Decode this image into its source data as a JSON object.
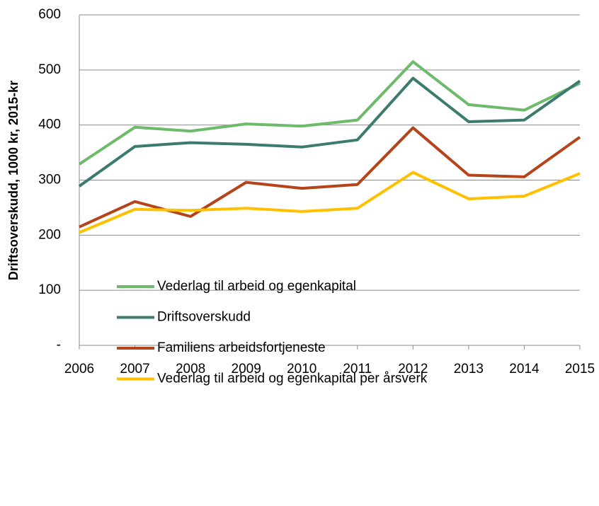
{
  "chart_data": {
    "type": "line",
    "y_label": "Driftsoverskudd, 1000 kr, 2015-kr",
    "x": [
      2006,
      2007,
      2008,
      2009,
      2010,
      2011,
      2012,
      2013,
      2014,
      2015
    ],
    "xlim": [
      2006,
      2015
    ],
    "xticks": [
      2006,
      2007,
      2008,
      2009,
      2010,
      2011,
      2012,
      2013,
      2014,
      2015
    ],
    "ylim": [
      0,
      600
    ],
    "yticks": [
      {
        "value": 0,
        "label": "-"
      },
      100,
      200,
      300,
      400,
      500,
      600
    ],
    "grid": true,
    "legend": "bottom",
    "series": [
      {
        "name": "Vederlag til arbeid og egenkapital",
        "color": "#6dba6a",
        "values": [
          329,
          396,
          389,
          402,
          398,
          409,
          515,
          437,
          427,
          476
        ]
      },
      {
        "name": "Driftsoverskudd",
        "color": "#3d7b6f",
        "values": [
          289,
          361,
          368,
          365,
          360,
          373,
          485,
          406,
          409,
          480
        ]
      },
      {
        "name": "Familiens arbeidsfortjeneste",
        "color": "#b5441a",
        "values": [
          215,
          261,
          234,
          296,
          285,
          292,
          395,
          309,
          306,
          378
        ]
      },
      {
        "name": "Vederlag til arbeid og egenkapital per årsverk",
        "color": "#ffc000",
        "values": [
          205,
          247,
          245,
          249,
          243,
          249,
          314,
          266,
          271,
          312
        ]
      }
    ]
  }
}
